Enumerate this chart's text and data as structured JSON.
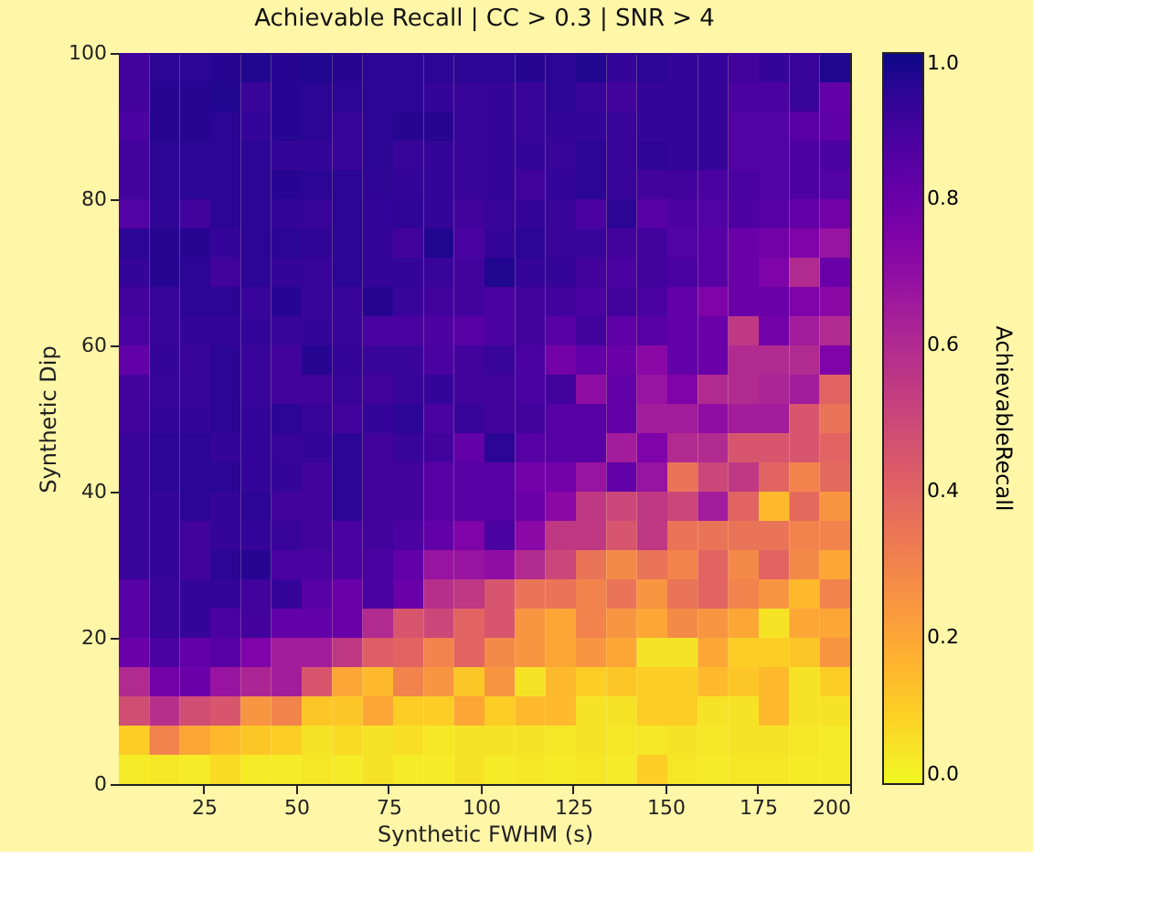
{
  "chart_data": {
    "type": "heatmap",
    "title": "Achievable Recall | CC > 0.3 | SNR > 4",
    "xlabel": "Synthetic FWHM (s)",
    "ylabel": "Synthetic Dip",
    "clabel": "AchievableRecall",
    "x": [
      6.125,
      14.375,
      22.625,
      30.875,
      39.125,
      47.375,
      55.625,
      63.875,
      72.125,
      80.375,
      88.625,
      96.875,
      105.125,
      113.375,
      121.625,
      129.875,
      138.125,
      146.375,
      154.625,
      162.875,
      171.125,
      179.375,
      187.625,
      195.875
    ],
    "y": [
      98,
      94,
      90,
      86,
      82,
      78,
      74,
      70,
      66,
      62,
      58,
      54,
      50,
      46,
      42,
      38,
      34,
      30,
      26,
      22,
      18,
      14,
      10,
      6,
      2
    ],
    "cells": [
      [
        0.9,
        0.95,
        0.95,
        0.96,
        0.97,
        0.96,
        0.97,
        0.96,
        0.95,
        0.95,
        0.95,
        0.95,
        0.95,
        0.96,
        0.95,
        0.97,
        0.93,
        0.95,
        0.93,
        0.93,
        0.9,
        0.93,
        0.92,
        0.97
      ],
      [
        0.9,
        0.96,
        0.96,
        0.97,
        0.92,
        0.96,
        0.95,
        0.95,
        0.95,
        0.95,
        0.93,
        0.92,
        0.93,
        0.92,
        0.95,
        0.92,
        0.9,
        0.93,
        0.93,
        0.93,
        0.88,
        0.88,
        0.92,
        0.82
      ],
      [
        0.88,
        0.96,
        0.96,
        0.95,
        0.93,
        0.96,
        0.95,
        0.92,
        0.95,
        0.96,
        0.96,
        0.92,
        0.93,
        0.92,
        0.93,
        0.93,
        0.92,
        0.93,
        0.93,
        0.93,
        0.86,
        0.86,
        0.84,
        0.83
      ],
      [
        0.9,
        0.95,
        0.95,
        0.95,
        0.95,
        0.93,
        0.93,
        0.92,
        0.95,
        0.92,
        0.93,
        0.92,
        0.93,
        0.93,
        0.92,
        0.95,
        0.92,
        0.94,
        0.93,
        0.93,
        0.86,
        0.86,
        0.87,
        0.88
      ],
      [
        0.9,
        0.95,
        0.95,
        0.95,
        0.95,
        0.96,
        0.95,
        0.95,
        0.94,
        0.93,
        0.93,
        0.92,
        0.93,
        0.9,
        0.93,
        0.95,
        0.92,
        0.9,
        0.9,
        0.88,
        0.88,
        0.86,
        0.87,
        0.86
      ],
      [
        0.86,
        0.94,
        0.9,
        0.95,
        0.95,
        0.93,
        0.92,
        0.95,
        0.93,
        0.94,
        0.93,
        0.9,
        0.92,
        0.93,
        0.92,
        0.88,
        0.95,
        0.85,
        0.87,
        0.86,
        0.87,
        0.85,
        0.82,
        0.78
      ],
      [
        0.95,
        0.96,
        0.96,
        0.93,
        0.95,
        0.95,
        0.94,
        0.95,
        0.93,
        0.9,
        0.97,
        0.88,
        0.93,
        0.95,
        0.92,
        0.92,
        0.9,
        0.9,
        0.86,
        0.85,
        0.8,
        0.78,
        0.75,
        0.68
      ],
      [
        0.93,
        0.96,
        0.95,
        0.9,
        0.95,
        0.93,
        0.92,
        0.95,
        0.93,
        0.93,
        0.92,
        0.9,
        0.97,
        0.93,
        0.93,
        0.9,
        0.88,
        0.9,
        0.88,
        0.85,
        0.8,
        0.75,
        0.6,
        0.8
      ],
      [
        0.9,
        0.92,
        0.95,
        0.95,
        0.92,
        0.96,
        0.92,
        0.92,
        0.96,
        0.92,
        0.9,
        0.9,
        0.88,
        0.9,
        0.9,
        0.88,
        0.9,
        0.88,
        0.82,
        0.75,
        0.8,
        0.8,
        0.75,
        0.72
      ],
      [
        0.88,
        0.92,
        0.93,
        0.93,
        0.93,
        0.92,
        0.93,
        0.92,
        0.88,
        0.88,
        0.87,
        0.85,
        0.88,
        0.9,
        0.85,
        0.9,
        0.83,
        0.85,
        0.82,
        0.8,
        0.55,
        0.78,
        0.65,
        0.6
      ],
      [
        0.82,
        0.93,
        0.92,
        0.95,
        0.92,
        0.9,
        0.96,
        0.93,
        0.92,
        0.92,
        0.88,
        0.9,
        0.92,
        0.88,
        0.78,
        0.82,
        0.8,
        0.72,
        0.82,
        0.8,
        0.6,
        0.6,
        0.6,
        0.75
      ],
      [
        0.9,
        0.92,
        0.92,
        0.95,
        0.92,
        0.9,
        0.9,
        0.92,
        0.9,
        0.92,
        0.93,
        0.9,
        0.9,
        0.88,
        0.9,
        0.7,
        0.82,
        0.68,
        0.75,
        0.6,
        0.6,
        0.62,
        0.65,
        0.4
      ],
      [
        0.9,
        0.93,
        0.93,
        0.95,
        0.93,
        0.95,
        0.92,
        0.9,
        0.93,
        0.95,
        0.88,
        0.92,
        0.9,
        0.9,
        0.85,
        0.85,
        0.82,
        0.65,
        0.65,
        0.7,
        0.65,
        0.65,
        0.45,
        0.35
      ],
      [
        0.92,
        0.95,
        0.95,
        0.93,
        0.93,
        0.92,
        0.93,
        0.95,
        0.9,
        0.92,
        0.9,
        0.82,
        0.95,
        0.85,
        0.85,
        0.85,
        0.65,
        0.75,
        0.6,
        0.6,
        0.45,
        0.45,
        0.45,
        0.4
      ],
      [
        0.92,
        0.95,
        0.95,
        0.95,
        0.93,
        0.93,
        0.9,
        0.95,
        0.9,
        0.9,
        0.85,
        0.85,
        0.85,
        0.78,
        0.78,
        0.68,
        0.82,
        0.68,
        0.35,
        0.5,
        0.55,
        0.4,
        0.3,
        0.38
      ],
      [
        0.92,
        0.93,
        0.95,
        0.93,
        0.95,
        0.9,
        0.9,
        0.95,
        0.9,
        0.9,
        0.85,
        0.85,
        0.85,
        0.8,
        0.72,
        0.55,
        0.5,
        0.55,
        0.5,
        0.65,
        0.4,
        0.15,
        0.38,
        0.25
      ],
      [
        0.92,
        0.93,
        0.9,
        0.93,
        0.93,
        0.92,
        0.9,
        0.88,
        0.9,
        0.88,
        0.82,
        0.75,
        0.88,
        0.72,
        0.55,
        0.55,
        0.45,
        0.55,
        0.35,
        0.35,
        0.35,
        0.35,
        0.3,
        0.3
      ],
      [
        0.92,
        0.93,
        0.9,
        0.95,
        0.96,
        0.88,
        0.88,
        0.88,
        0.88,
        0.82,
        0.68,
        0.68,
        0.7,
        0.6,
        0.5,
        0.35,
        0.28,
        0.35,
        0.3,
        0.4,
        0.28,
        0.4,
        0.28,
        0.2
      ],
      [
        0.85,
        0.92,
        0.93,
        0.93,
        0.9,
        0.93,
        0.85,
        0.8,
        0.88,
        0.8,
        0.58,
        0.55,
        0.45,
        0.35,
        0.35,
        0.3,
        0.35,
        0.25,
        0.35,
        0.4,
        0.3,
        0.25,
        0.15,
        0.3
      ],
      [
        0.85,
        0.92,
        0.93,
        0.88,
        0.9,
        0.82,
        0.82,
        0.8,
        0.6,
        0.45,
        0.5,
        0.4,
        0.45,
        0.25,
        0.2,
        0.3,
        0.25,
        0.2,
        0.28,
        0.25,
        0.2,
        0.05,
        0.2,
        0.2
      ],
      [
        0.8,
        0.88,
        0.82,
        0.85,
        0.75,
        0.65,
        0.65,
        0.55,
        0.42,
        0.4,
        0.3,
        0.4,
        0.28,
        0.25,
        0.2,
        0.25,
        0.2,
        0.05,
        0.05,
        0.2,
        0.1,
        0.1,
        0.12,
        0.25
      ],
      [
        0.6,
        0.78,
        0.8,
        0.68,
        0.62,
        0.65,
        0.45,
        0.2,
        0.15,
        0.3,
        0.25,
        0.12,
        0.25,
        0.05,
        0.15,
        0.1,
        0.12,
        0.1,
        0.1,
        0.15,
        0.12,
        0.15,
        0.05,
        0.1
      ],
      [
        0.48,
        0.58,
        0.48,
        0.45,
        0.25,
        0.3,
        0.12,
        0.12,
        0.2,
        0.1,
        0.1,
        0.2,
        0.1,
        0.15,
        0.15,
        0.05,
        0.05,
        0.1,
        0.1,
        0.05,
        0.05,
        0.15,
        0.05,
        0.05
      ],
      [
        0.1,
        0.3,
        0.2,
        0.15,
        0.12,
        0.1,
        0.05,
        0.07,
        0.05,
        0.06,
        0.04,
        0.05,
        0.05,
        0.05,
        0.04,
        0.05,
        0.04,
        0.04,
        0.05,
        0.04,
        0.05,
        0.05,
        0.04,
        0.03
      ],
      [
        0.03,
        0.04,
        0.03,
        0.07,
        0.03,
        0.03,
        0.04,
        0.03,
        0.05,
        0.03,
        0.03,
        0.05,
        0.03,
        0.04,
        0.03,
        0.04,
        0.03,
        0.1,
        0.04,
        0.03,
        0.04,
        0.04,
        0.03,
        0.03
      ]
    ],
    "xlim": [
      2,
      200
    ],
    "xticks": [
      25,
      50,
      75,
      100,
      125,
      150,
      175,
      200
    ],
    "ylim": [
      0,
      100
    ],
    "yticks": [
      0,
      20,
      40,
      60,
      80,
      100
    ],
    "clim": [
      0,
      1
    ],
    "cticks": [
      {
        "value": 0,
        "label": "0.0"
      },
      {
        "value": 0.2,
        "label": "0.2"
      },
      {
        "value": 0.4,
        "label": "0.4"
      },
      {
        "value": 0.6,
        "label": "0.6"
      },
      {
        "value": 0.8,
        "label": "0.8"
      },
      {
        "value": 1,
        "label": "1.0"
      }
    ],
    "grid": false
  }
}
